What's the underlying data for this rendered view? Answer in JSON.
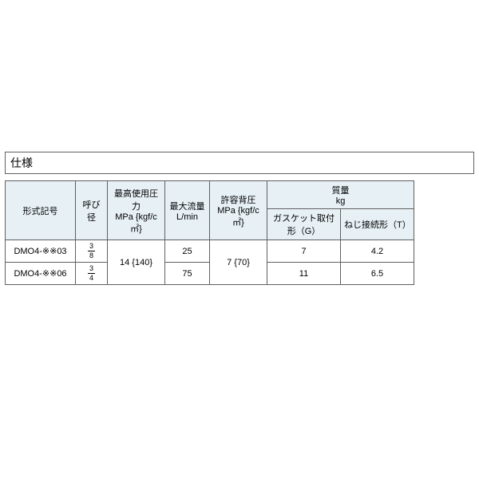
{
  "section_title": "仕様",
  "table": {
    "headers": {
      "model": "形式記号",
      "size": "呼び径",
      "max_pressure_l1": "最高使用圧力",
      "max_pressure_l2": "MPa {kgf/c㎡}",
      "max_flow_l1": "最大流量",
      "max_flow_l2": "L/min",
      "back_press_l1": "許容背圧",
      "back_press_l2": "MPa {kgf/c㎡}",
      "mass_l1": "質量",
      "mass_l2": "kg",
      "mass_g": "ガスケット取付形（G）",
      "mass_t": "ねじ接続形（T）"
    },
    "shared": {
      "max_pressure": "14 {140}",
      "back_press": "7 {70}"
    },
    "rows": [
      {
        "model": "DMO4-※※03",
        "size_num": "3",
        "size_den": "8",
        "max_flow": "25",
        "mass_g": "7",
        "mass_t": "4.2"
      },
      {
        "model": "DMO4-※※06",
        "size_num": "3",
        "size_den": "4",
        "max_flow": "75",
        "mass_g": "11",
        "mass_t": "6.5"
      }
    ]
  },
  "style": {
    "header_bg": "#e6f0f5",
    "border_color": "#606060",
    "font_size_body": 11,
    "font_size_title": 14
  }
}
